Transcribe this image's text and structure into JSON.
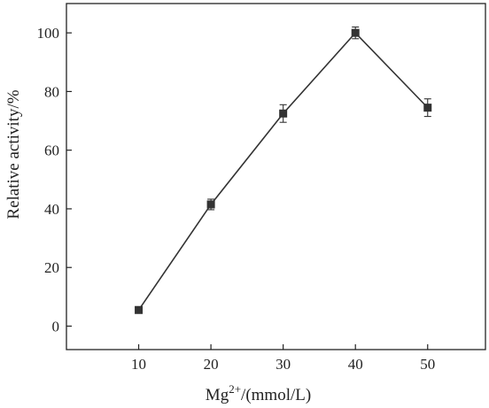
{
  "chart_data": {
    "type": "line",
    "xlabel_parts": {
      "base": "Mg",
      "superscript": "2+",
      "suffix": "/(mmol/L)"
    },
    "ylabel": "Relative activity/%",
    "x": [
      10,
      20,
      30,
      40,
      50
    ],
    "xlim": [
      0,
      58
    ],
    "ylim": [
      -8,
      110
    ],
    "x_ticks": [
      10,
      20,
      30,
      40,
      50
    ],
    "y_ticks": [
      0,
      20,
      40,
      60,
      80,
      100
    ],
    "series": [
      {
        "values": [
          5.5,
          41.5,
          72.5,
          100,
          74.5
        ],
        "errors": [
          0.8,
          1.8,
          3,
          2,
          3
        ],
        "marker": "square",
        "color": "#333333"
      }
    ],
    "grid": false,
    "legend": "none"
  }
}
